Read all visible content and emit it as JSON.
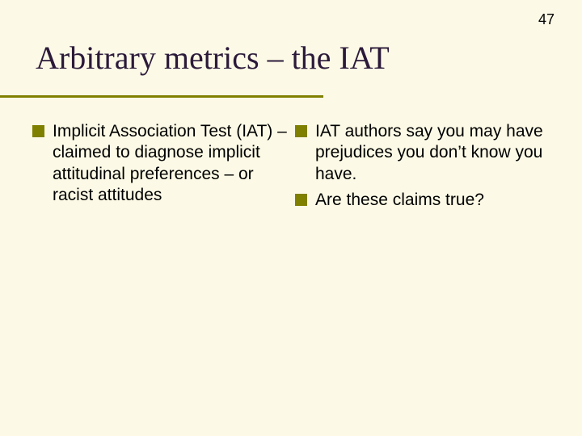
{
  "page_number": "47",
  "title": "Arbitrary metrics – the IAT",
  "colors": {
    "background": "#fcfae6",
    "title_color": "#2c1a3a",
    "bullet_color": "#808000",
    "underline_color": "#808000",
    "text_color": "#000000"
  },
  "typography": {
    "title_font": "Times New Roman",
    "title_fontsize": 40,
    "title_weight": 400,
    "body_font": "Arial",
    "body_fontsize": 21,
    "page_number_fontsize": 18
  },
  "layout": {
    "slide_width": 720,
    "slide_height": 540,
    "underline_width": 400,
    "underline_height": 3,
    "bullet_size": 15
  },
  "left_column": {
    "items": [
      "Implicit Association Test (IAT) – claimed to diagnose implicit attitudinal preferences – or racist attitudes"
    ]
  },
  "right_column": {
    "items": [
      "IAT authors say you may have prejudices you don’t know you have.",
      "Are these claims true?"
    ]
  }
}
